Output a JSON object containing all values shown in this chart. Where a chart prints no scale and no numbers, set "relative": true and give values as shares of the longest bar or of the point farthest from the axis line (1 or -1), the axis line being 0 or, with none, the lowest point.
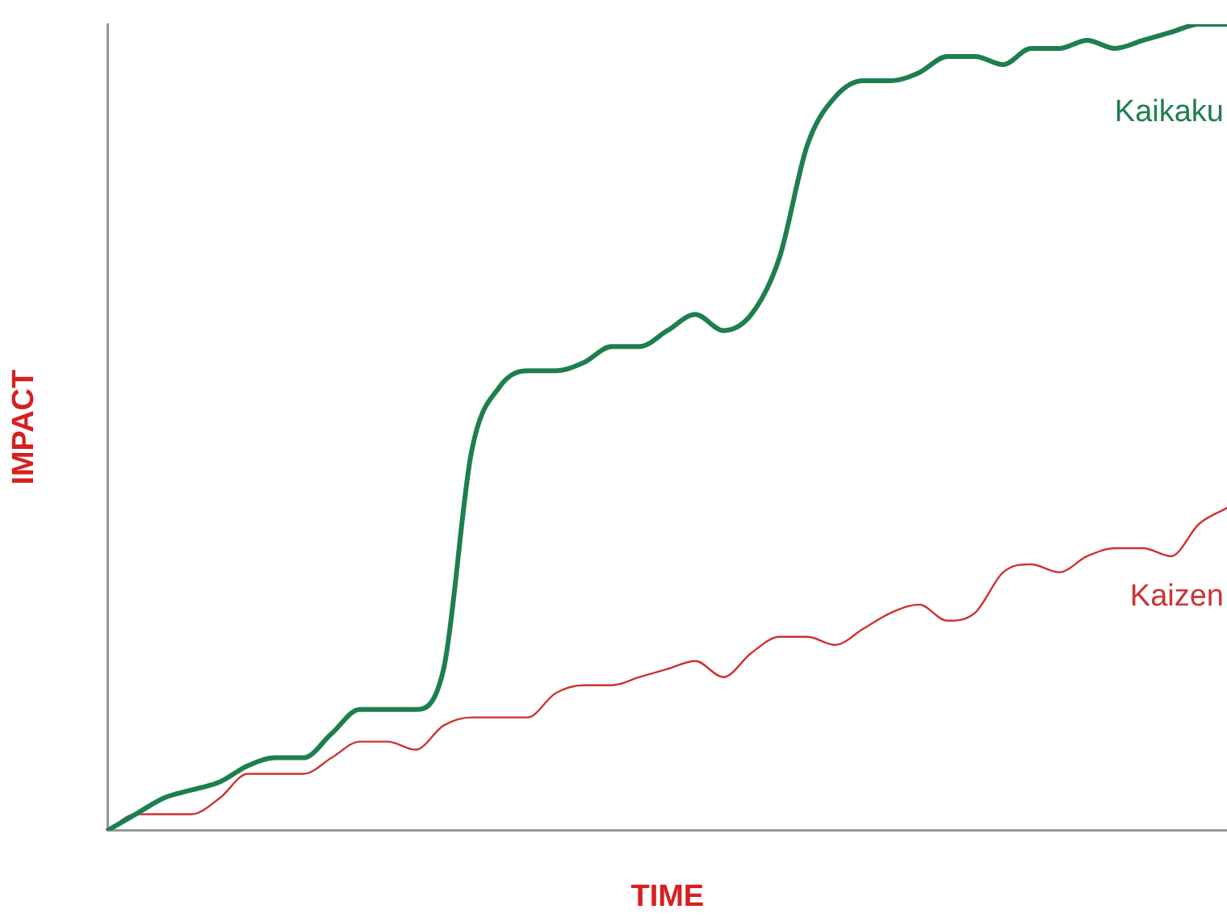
{
  "chart_data": {
    "type": "line",
    "relative": true,
    "xlabel": "TIME",
    "ylabel": "IMPACT",
    "tick_labels": false,
    "grid": false,
    "legend": false,
    "marker": "none",
    "line_style": "solid",
    "categories": [
      null,
      null,
      null,
      null,
      null,
      null,
      null,
      null,
      null,
      null,
      null,
      null,
      null,
      null,
      null,
      null,
      null,
      null,
      null,
      null,
      null,
      null,
      null,
      null,
      null,
      null,
      null,
      null,
      null,
      null,
      null,
      null,
      null,
      null,
      null,
      null,
      null,
      null,
      null,
      null,
      null
    ],
    "series": [
      {
        "name": "Kaikaku",
        "color": "#1e7f4e",
        "values": [
          0,
          0.02,
          0.04,
          0.05,
          0.06,
          0.08,
          0.09,
          0.09,
          0.12,
          0.15,
          0.15,
          0.15,
          0.2,
          0.47,
          0.55,
          0.57,
          0.57,
          0.58,
          0.6,
          0.6,
          0.62,
          0.64,
          0.62,
          0.64,
          0.71,
          0.85,
          0.91,
          0.93,
          0.93,
          0.94,
          0.96,
          0.96,
          0.95,
          0.97,
          0.97,
          0.98,
          0.97,
          0.98,
          0.99,
          1,
          1
        ]
      },
      {
        "name": "Kaizen",
        "color": "#cc3333",
        "values": [
          0,
          0.02,
          0.02,
          0.02,
          0.04,
          0.07,
          0.07,
          0.07,
          0.09,
          0.11,
          0.11,
          0.1,
          0.13,
          0.14,
          0.14,
          0.14,
          0.17,
          0.18,
          0.18,
          0.19,
          0.2,
          0.21,
          0.19,
          0.22,
          0.24,
          0.24,
          0.23,
          0.25,
          0.27,
          0.28,
          0.26,
          0.27,
          0.32,
          0.33,
          0.32,
          0.34,
          0.35,
          0.35,
          0.34,
          0.38,
          0.4
        ]
      }
    ]
  }
}
